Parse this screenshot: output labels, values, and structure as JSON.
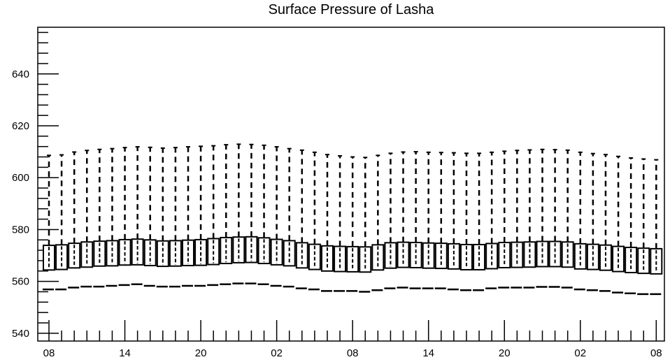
{
  "chart_data": {
    "type": "boxplot",
    "title": "Surface Pressure of Lasha",
    "xlabel": "",
    "ylabel": "",
    "ylim": [
      537,
      658
    ],
    "y_ticks": [
      "540",
      "560",
      "580",
      "600",
      "620",
      "640"
    ],
    "x_ticks": [
      "08",
      "14",
      "20",
      "02",
      "08",
      "14",
      "20",
      "02",
      "08"
    ],
    "n_hours": 49,
    "min_markers": [
      556.9,
      556.9,
      557.6,
      558.0,
      558.0,
      558.3,
      558.6,
      558.9,
      558.3,
      558.0,
      558.0,
      558.3,
      558.3,
      558.6,
      558.9,
      559.2,
      559.2,
      558.9,
      558.3,
      558.0,
      557.3,
      556.9,
      556.3,
      556.3,
      556.3,
      556.0,
      556.6,
      557.3,
      557.6,
      557.3,
      557.3,
      557.3,
      556.9,
      556.6,
      556.6,
      557.3,
      557.6,
      557.6,
      557.6,
      557.9,
      557.9,
      557.6,
      556.9,
      556.6,
      556.3,
      555.7,
      555.4,
      555.1,
      555.1
    ],
    "box_low": [
      564.4,
      564.6,
      565.2,
      565.5,
      565.9,
      566.0,
      566.3,
      566.4,
      566.1,
      565.8,
      565.9,
      566.1,
      566.2,
      566.5,
      566.9,
      567.2,
      567.3,
      566.9,
      566.4,
      566.0,
      565.2,
      564.6,
      564.0,
      563.8,
      563.7,
      563.6,
      564.4,
      565.1,
      565.4,
      565.3,
      565.1,
      565.0,
      564.8,
      564.5,
      564.5,
      564.9,
      565.3,
      565.4,
      565.5,
      565.7,
      565.7,
      565.5,
      564.8,
      564.6,
      564.3,
      563.8,
      563.4,
      563.1,
      562.9
    ],
    "box_high": [
      573.9,
      574.1,
      574.7,
      575.2,
      575.5,
      575.7,
      576.1,
      576.3,
      576.0,
      575.6,
      575.7,
      575.9,
      576.1,
      576.5,
      576.9,
      577.1,
      577.2,
      576.8,
      576.2,
      575.7,
      574.9,
      574.3,
      573.7,
      573.5,
      573.4,
      573.3,
      574.1,
      574.9,
      575.1,
      575.0,
      574.8,
      574.7,
      574.5,
      574.2,
      574.2,
      574.6,
      575.0,
      575.1,
      575.2,
      575.4,
      575.4,
      575.2,
      574.5,
      574.3,
      574.0,
      573.5,
      573.1,
      572.8,
      572.6
    ],
    "whisker_high": [
      608.6,
      608.8,
      609.9,
      610.5,
      610.9,
      611.2,
      611.6,
      611.9,
      611.7,
      611.4,
      611.6,
      611.9,
      612.1,
      612.3,
      612.7,
      612.9,
      612.8,
      612.5,
      611.9,
      611.2,
      610.6,
      609.8,
      608.9,
      608.4,
      608.0,
      607.8,
      608.6,
      609.4,
      609.9,
      610.0,
      609.8,
      609.7,
      609.6,
      609.4,
      609.4,
      609.8,
      610.2,
      610.5,
      610.7,
      610.9,
      610.8,
      610.6,
      609.8,
      609.3,
      608.9,
      608.2,
      607.6,
      607.2,
      606.9
    ]
  }
}
